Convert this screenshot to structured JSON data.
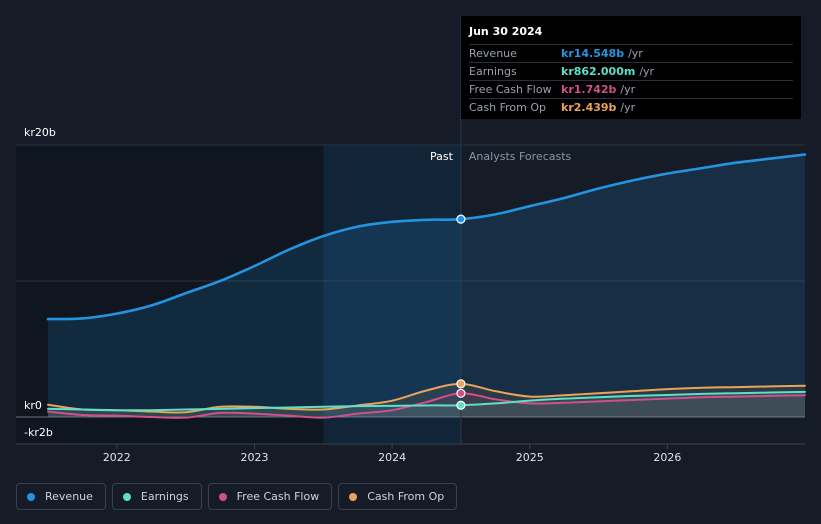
{
  "colors": {
    "revenue": "#2394df",
    "earnings": "#5de0c8",
    "free_cash_flow": "#d14f8c",
    "cash_from_op": "#e9a35a",
    "background": "#151b27",
    "past_shade": "#0f1620",
    "highlight": "#16324a"
  },
  "tooltip": {
    "date": "Jun 30 2024",
    "rows": [
      {
        "name": "Revenue",
        "value": "kr14.548b",
        "unit": "/yr"
      },
      {
        "name": "Earnings",
        "value": "kr862.000m",
        "unit": "/yr"
      },
      {
        "name": "Free Cash Flow",
        "value": "kr1.742b",
        "unit": "/yr"
      },
      {
        "name": "Cash From Op",
        "value": "kr2.439b",
        "unit": "/yr"
      }
    ]
  },
  "legend": [
    {
      "label": "Revenue",
      "key": "revenue"
    },
    {
      "label": "Earnings",
      "key": "earnings"
    },
    {
      "label": "Free Cash Flow",
      "key": "free_cash_flow"
    },
    {
      "label": "Cash From Op",
      "key": "cash_from_op"
    }
  ],
  "chart_data": {
    "type": "area",
    "title": "",
    "y_labels": [
      {
        "text": "kr20b",
        "value": 20
      },
      {
        "text": "kr0",
        "value": 0
      },
      {
        "text": "-kr2b",
        "value": -2
      }
    ],
    "ylim": [
      -2,
      20
    ],
    "xlim": [
      2021.5,
      2027.0
    ],
    "x_ticks": [
      {
        "text": "2022",
        "value": 2022
      },
      {
        "text": "2023",
        "value": 2023
      },
      {
        "text": "2024",
        "value": 2024
      },
      {
        "text": "2025",
        "value": 2025
      },
      {
        "text": "2026",
        "value": 2026
      }
    ],
    "past_label": "Past",
    "forecast_label": "Analysts Forecasts",
    "past_end": 2024.5,
    "highlight_start": 2023.5,
    "series": [
      {
        "name": "Revenue",
        "key": "revenue",
        "x": [
          2021.5,
          2021.75,
          2022.0,
          2022.25,
          2022.5,
          2022.75,
          2023.0,
          2023.25,
          2023.5,
          2023.75,
          2024.0,
          2024.25,
          2024.5,
          2024.75,
          2025.0,
          2025.25,
          2025.5,
          2025.75,
          2026.0,
          2026.25,
          2026.5,
          2026.75,
          2027.0
        ],
        "values": [
          7.2,
          7.25,
          7.6,
          8.2,
          9.1,
          10.0,
          11.1,
          12.3,
          13.3,
          14.0,
          14.35,
          14.5,
          14.548,
          14.9,
          15.5,
          16.1,
          16.8,
          17.4,
          17.9,
          18.3,
          18.7,
          19.0,
          19.3
        ]
      },
      {
        "name": "Earnings",
        "key": "earnings",
        "x": [
          2021.5,
          2021.75,
          2022.0,
          2022.25,
          2022.5,
          2022.75,
          2023.0,
          2023.25,
          2023.5,
          2023.75,
          2024.0,
          2024.25,
          2024.5,
          2024.75,
          2025.0,
          2025.25,
          2025.5,
          2025.75,
          2026.0,
          2026.25,
          2026.5,
          2026.75,
          2027.0
        ],
        "values": [
          0.6,
          0.55,
          0.5,
          0.5,
          0.55,
          0.6,
          0.65,
          0.7,
          0.75,
          0.8,
          0.82,
          0.85,
          0.862,
          1.0,
          1.2,
          1.35,
          1.45,
          1.55,
          1.62,
          1.7,
          1.75,
          1.8,
          1.85
        ]
      },
      {
        "name": "Free Cash Flow",
        "key": "free_cash_flow",
        "x": [
          2021.5,
          2021.75,
          2022.0,
          2022.25,
          2022.5,
          2022.75,
          2023.0,
          2023.25,
          2023.5,
          2023.75,
          2024.0,
          2024.25,
          2024.5,
          2024.75,
          2025.0,
          2025.25,
          2025.5,
          2025.75,
          2026.0,
          2026.25,
          2026.5,
          2026.75,
          2027.0
        ],
        "values": [
          0.4,
          0.15,
          0.1,
          0.0,
          -0.05,
          0.3,
          0.25,
          0.1,
          -0.05,
          0.25,
          0.5,
          1.1,
          1.742,
          1.3,
          1.0,
          1.05,
          1.15,
          1.25,
          1.35,
          1.45,
          1.5,
          1.55,
          1.6
        ]
      },
      {
        "name": "Cash From Op",
        "key": "cash_from_op",
        "x": [
          2021.5,
          2021.75,
          2022.0,
          2022.25,
          2022.5,
          2022.75,
          2023.0,
          2023.25,
          2023.5,
          2023.75,
          2024.0,
          2024.25,
          2024.5,
          2024.75,
          2025.0,
          2025.25,
          2025.5,
          2025.75,
          2026.0,
          2026.25,
          2026.5,
          2026.75,
          2027.0
        ],
        "values": [
          0.9,
          0.55,
          0.5,
          0.4,
          0.35,
          0.75,
          0.75,
          0.6,
          0.55,
          0.85,
          1.2,
          1.95,
          2.439,
          1.9,
          1.5,
          1.6,
          1.75,
          1.9,
          2.05,
          2.15,
          2.2,
          2.25,
          2.3
        ]
      }
    ]
  }
}
